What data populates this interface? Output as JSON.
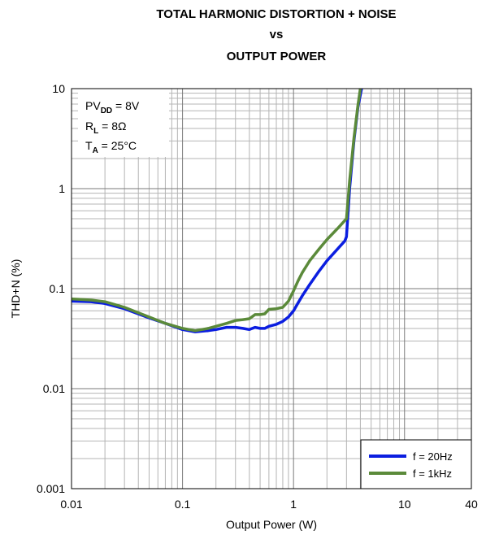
{
  "chart_data": {
    "type": "line",
    "title_lines": [
      "TOTAL HARMONIC DISTORTION + NOISE",
      "vs",
      "OUTPUT POWER"
    ],
    "xlabel": "Output Power (W)",
    "ylabel": "THD+N (%)",
    "xscale": "log",
    "yscale": "log",
    "xlim": [
      0.01,
      40
    ],
    "ylim": [
      0.001,
      10
    ],
    "x_ticks": [
      {
        "value": 0.01,
        "label": "0.01"
      },
      {
        "value": 0.1,
        "label": "0.1"
      },
      {
        "value": 1,
        "label": "1"
      },
      {
        "value": 10,
        "label": "10"
      },
      {
        "value": 40,
        "label": "40"
      }
    ],
    "y_ticks": [
      {
        "value": 0.001,
        "label": "0.001"
      },
      {
        "value": 0.01,
        "label": "0.01"
      },
      {
        "value": 0.1,
        "label": "0.1"
      },
      {
        "value": 1,
        "label": "1"
      },
      {
        "value": 10,
        "label": "10"
      }
    ],
    "grid": true,
    "legend_position": "bottom-right",
    "conditions": [
      {
        "pre": "PV",
        "sub": "DD",
        "post": " = 8V"
      },
      {
        "pre": "R",
        "sub": "L",
        "post": " = 8Ω"
      },
      {
        "pre": "T",
        "sub": "A",
        "post": " = 25°C"
      }
    ],
    "series": [
      {
        "name": "f = 20Hz",
        "color": "#0b1ee0",
        "points": [
          [
            0.01,
            0.075
          ],
          [
            0.015,
            0.074
          ],
          [
            0.02,
            0.071
          ],
          [
            0.03,
            0.063
          ],
          [
            0.05,
            0.051
          ],
          [
            0.07,
            0.045
          ],
          [
            0.1,
            0.039
          ],
          [
            0.13,
            0.037
          ],
          [
            0.17,
            0.038
          ],
          [
            0.2,
            0.039
          ],
          [
            0.25,
            0.041
          ],
          [
            0.3,
            0.041
          ],
          [
            0.35,
            0.04
          ],
          [
            0.4,
            0.039
          ],
          [
            0.45,
            0.041
          ],
          [
            0.5,
            0.04
          ],
          [
            0.55,
            0.04
          ],
          [
            0.6,
            0.042
          ],
          [
            0.7,
            0.044
          ],
          [
            0.8,
            0.047
          ],
          [
            0.9,
            0.052
          ],
          [
            1.0,
            0.06
          ],
          [
            1.1,
            0.072
          ],
          [
            1.2,
            0.085
          ],
          [
            1.4,
            0.11
          ],
          [
            1.7,
            0.15
          ],
          [
            2.0,
            0.19
          ],
          [
            2.5,
            0.25
          ],
          [
            2.9,
            0.3
          ],
          [
            3.0,
            0.33
          ],
          [
            3.2,
            1.0
          ],
          [
            3.5,
            3.0
          ],
          [
            3.8,
            6.5
          ],
          [
            4.1,
            10
          ]
        ]
      },
      {
        "name": "f = 1kHz",
        "color": "#5b8a3a",
        "points": [
          [
            0.01,
            0.079
          ],
          [
            0.015,
            0.077
          ],
          [
            0.02,
            0.074
          ],
          [
            0.03,
            0.065
          ],
          [
            0.05,
            0.052
          ],
          [
            0.07,
            0.045
          ],
          [
            0.1,
            0.04
          ],
          [
            0.13,
            0.038
          ],
          [
            0.17,
            0.04
          ],
          [
            0.2,
            0.042
          ],
          [
            0.25,
            0.045
          ],
          [
            0.3,
            0.048
          ],
          [
            0.35,
            0.049
          ],
          [
            0.4,
            0.05
          ],
          [
            0.45,
            0.055
          ],
          [
            0.5,
            0.055
          ],
          [
            0.55,
            0.056
          ],
          [
            0.6,
            0.062
          ],
          [
            0.7,
            0.063
          ],
          [
            0.8,
            0.065
          ],
          [
            0.9,
            0.075
          ],
          [
            1.0,
            0.095
          ],
          [
            1.1,
            0.12
          ],
          [
            1.2,
            0.145
          ],
          [
            1.4,
            0.19
          ],
          [
            1.7,
            0.25
          ],
          [
            2.0,
            0.31
          ],
          [
            2.5,
            0.4
          ],
          [
            2.9,
            0.48
          ],
          [
            3.0,
            0.5
          ],
          [
            3.2,
            1.2
          ],
          [
            3.5,
            3.2
          ],
          [
            3.8,
            6.8
          ],
          [
            4.0,
            10
          ]
        ]
      }
    ]
  }
}
